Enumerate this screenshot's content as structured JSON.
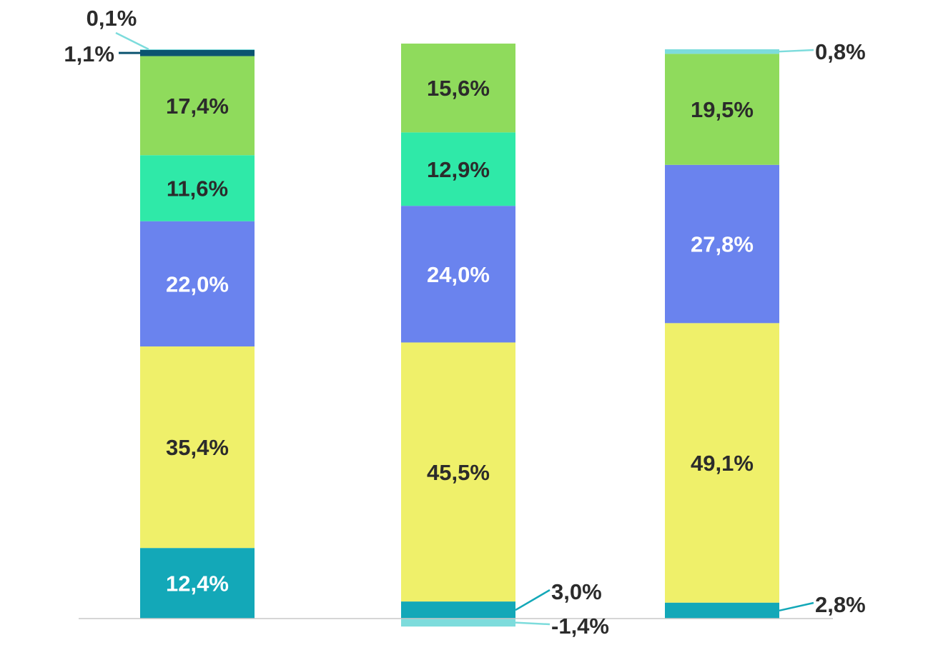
{
  "chart_data": {
    "type": "bar",
    "stacked": true,
    "categories": [
      "",
      "",
      ""
    ],
    "title": "",
    "xlabel": "",
    "ylabel": "",
    "ylim": [
      -1.4,
      100
    ],
    "grid": false,
    "legend": "none",
    "series": [
      {
        "key": "teal",
        "color": "#13a8b8",
        "values": [
          12.4,
          3.0,
          2.8
        ],
        "labels": [
          "12,4%",
          "3,0%",
          "2,8%"
        ]
      },
      {
        "key": "yellow",
        "color": "#eff06a",
        "values": [
          35.4,
          45.5,
          49.1
        ],
        "labels": [
          "35,4%",
          "45,5%",
          "49,1%"
        ]
      },
      {
        "key": "blue",
        "color": "#6a83ee",
        "values": [
          22.0,
          24.0,
          27.8
        ],
        "labels": [
          "22,0%",
          "24,0%",
          "27,8%"
        ]
      },
      {
        "key": "mint",
        "color": "#2fe9a8",
        "values": [
          11.6,
          12.9,
          0
        ],
        "labels": [
          "11,6%",
          "12,9%",
          ""
        ]
      },
      {
        "key": "green",
        "color": "#8fdb5c",
        "values": [
          17.4,
          15.6,
          19.5
        ],
        "labels": [
          "17,4%",
          "15,6%",
          "19,5%"
        ]
      },
      {
        "key": "navy",
        "color": "#0b5470",
        "values": [
          1.1,
          0,
          0
        ],
        "labels": [
          "1,1%",
          "",
          ""
        ]
      },
      {
        "key": "light-cyan",
        "color": "#7ddcdc",
        "values": [
          0.1,
          -1.4,
          0.8
        ],
        "labels": [
          "0,1%",
          "-1,4%",
          "0,8%"
        ]
      }
    ]
  }
}
